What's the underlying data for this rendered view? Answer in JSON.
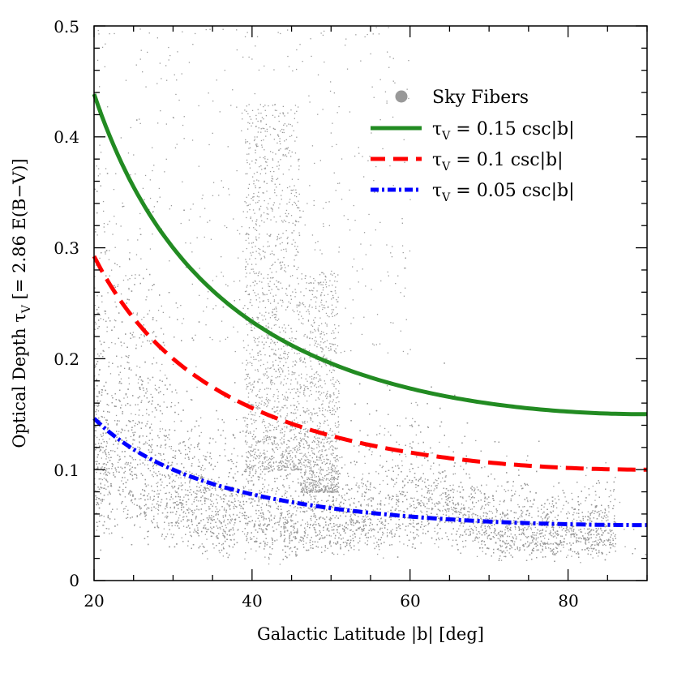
{
  "chart_data": {
    "type": "scatter",
    "xlabel": "Galactic Latitude |b| [deg]",
    "ylabel": "Optical Depth τ",
    "ylabel_sub": "V",
    "ylabel_suffix": "[= 2.86 E(B−V)]",
    "xlim": [
      20,
      90
    ],
    "ylim": [
      0,
      0.5
    ],
    "x_ticks": [
      "20",
      "40",
      "60",
      "80"
    ],
    "y_ticks": [
      "0",
      "0.1",
      "0.2",
      "0.3",
      "0.4",
      "0.5"
    ],
    "grid": false,
    "legend_position": "top-right",
    "series": [
      {
        "name": "Sky Fibers",
        "kind": "scatter",
        "color": "#999999",
        "label": "Sky Fibers"
      },
      {
        "name": "τV = 0.15 csc|b|",
        "kind": "line",
        "style": "solid",
        "color": "#228B22",
        "coef": 0.15,
        "label_pre": "τ",
        "label_sub": "V",
        "label_post": " = 0.15 csc|b|"
      },
      {
        "name": "τV = 0.1 csc|b|",
        "kind": "line",
        "style": "dashed",
        "color": "#FF0000",
        "coef": 0.1,
        "label_pre": "τ",
        "label_sub": "V",
        "label_post": " = 0.1 csc|b|"
      },
      {
        "name": "τV = 0.05 csc|b|",
        "kind": "line",
        "style": "dash-dot",
        "color": "#0000FF",
        "coef": 0.05,
        "label_pre": "τ",
        "label_sub": "V",
        "label_post": " = 0.05 csc|b|"
      }
    ]
  }
}
